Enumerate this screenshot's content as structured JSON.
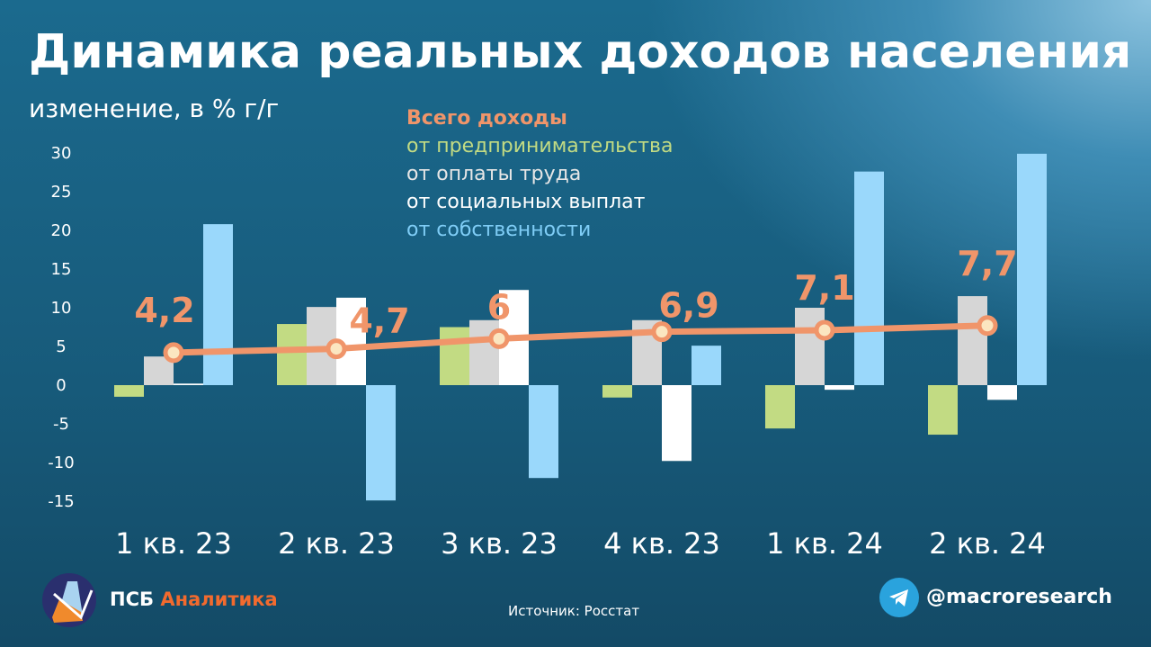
{
  "header": {
    "title": "Динамика реальных доходов населения",
    "subtitle": "изменение, в % г/г"
  },
  "chart_data": {
    "type": "bar",
    "title": "Динамика реальных доходов населения",
    "ylabel": "изменение, в % г/г",
    "ylim": [
      -15,
      30
    ],
    "yticks": [
      30,
      25,
      20,
      15,
      10,
      5,
      0,
      -5,
      -10,
      -15
    ],
    "categories": [
      "1 кв. 23",
      "2 кв. 23",
      "3 кв. 23",
      "4 кв. 23",
      "1 кв. 24",
      "2 кв. 24"
    ],
    "series": [
      {
        "name": "от предпринимательства",
        "type": "bar",
        "color": "#c2db83",
        "values": [
          -1.5,
          7.9,
          7.5,
          -1.6,
          -5.6,
          -6.4
        ]
      },
      {
        "name": "от оплаты труда",
        "type": "bar",
        "color": "#d6d6d6",
        "values": [
          3.7,
          10.1,
          8.4,
          8.4,
          10.0,
          11.5
        ]
      },
      {
        "name": "от социальных выплат",
        "type": "bar",
        "color": "#ffffff",
        "values": [
          0.2,
          11.3,
          12.3,
          -9.8,
          -0.6,
          -1.9
        ]
      },
      {
        "name": "от собственности",
        "type": "bar",
        "color": "#9ad8fb",
        "values": [
          20.8,
          -14.9,
          -12.0,
          5.1,
          27.6,
          29.9
        ]
      },
      {
        "name": "Всего доходы",
        "type": "line",
        "color": "#f0956a",
        "values": [
          4.2,
          4.7,
          6,
          6.9,
          7.1,
          7.7
        ],
        "labels": [
          "4,2",
          "4,7",
          "6",
          "6,9",
          "7,1",
          "7,7"
        ]
      }
    ],
    "legend": "top-center"
  },
  "footer": {
    "source": "Источник: Росстат",
    "brand_a": "ПСБ",
    "brand_b": "Аналитика",
    "handle": "@macroresearch"
  }
}
